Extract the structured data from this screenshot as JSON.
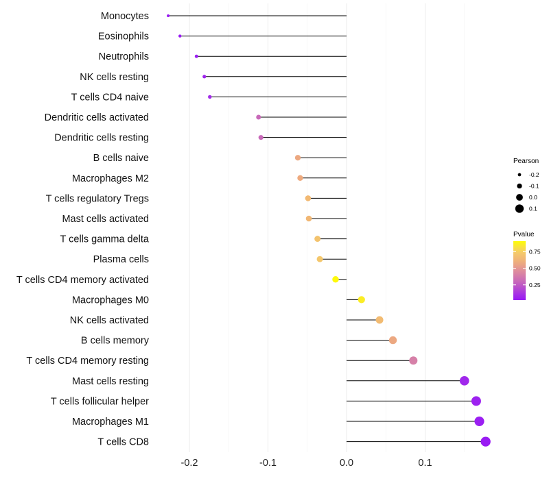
{
  "chart_data": {
    "type": "lollipop",
    "title": "",
    "xlabel": "",
    "ylabel": "",
    "xlim": [
      -0.24,
      0.19
    ],
    "x_ticks": [
      -0.2,
      -0.1,
      0.0,
      0.1
    ],
    "x_tick_labels": [
      "-0.2",
      "-0.1",
      "0.0",
      "0.1"
    ],
    "grid": true,
    "categories": [
      "Monocytes",
      "Eosinophils",
      "Neutrophils",
      "NK cells resting",
      "T cells CD4 naive",
      "Dendritic cells activated",
      "Dendritic cells resting",
      "B cells naive",
      "Macrophages M2",
      "T cells regulatory  Tregs ",
      "Mast cells activated",
      "T cells gamma delta",
      "Plasma cells",
      "T cells CD4 memory activated",
      "Macrophages M0",
      "NK cells activated",
      "B cells memory",
      "T cells CD4 memory resting",
      "Mast cells resting",
      "T cells follicular helper",
      "Macrophages M1",
      "T cells CD8"
    ],
    "pearson": [
      -0.227,
      -0.212,
      -0.191,
      -0.181,
      -0.174,
      -0.112,
      -0.109,
      -0.062,
      -0.059,
      -0.049,
      -0.048,
      -0.037,
      -0.034,
      -0.014,
      0.019,
      0.042,
      0.059,
      0.085,
      0.15,
      0.165,
      0.169,
      0.177
    ],
    "pvalue": [
      0.02,
      0.03,
      0.05,
      0.07,
      0.09,
      0.3,
      0.3,
      0.57,
      0.58,
      0.65,
      0.64,
      0.7,
      0.72,
      0.9,
      0.86,
      0.66,
      0.57,
      0.4,
      0.08,
      0.06,
      0.05,
      0.03
    ],
    "legend": {
      "placement": "right",
      "size_title": "Pearson",
      "size_breaks": [
        -0.2,
        -0.1,
        0.0,
        0.1
      ],
      "size_labels": [
        "-0.2",
        "-0.1",
        "0.0",
        "0.1"
      ],
      "color_title": "Pvalue",
      "color_breaks": [
        0.25,
        0.5,
        0.75
      ],
      "color_labels": [
        "0.25",
        "0.50",
        "0.75"
      ],
      "color_range": [
        0.02,
        0.91
      ],
      "color_low": "#9b1ff2",
      "color_mid": "#d98aa0",
      "color_high": "#ffff00"
    }
  }
}
